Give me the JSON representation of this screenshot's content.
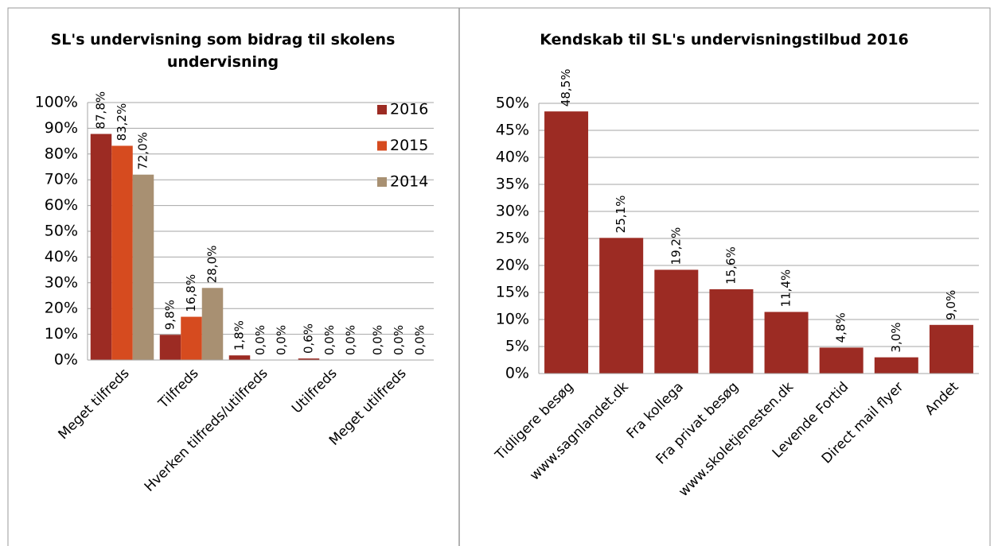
{
  "chart_data": [
    {
      "type": "bar",
      "title": "SL's undervisning som bidrag til skolens undervisning",
      "categories": [
        "Meget tilfreds",
        "Tilfreds",
        "Hverken tilfreds/utilfreds",
        "Utilfreds",
        "Meget utilfreds"
      ],
      "series": [
        {
          "name": "2016",
          "color": "#9c2b23",
          "values": [
            87.8,
            9.8,
            1.8,
            0.6,
            0.0
          ],
          "value_labels": [
            "87,8%",
            "9,8%",
            "1,8%",
            "0,6%",
            "0,0%"
          ]
        },
        {
          "name": "2015",
          "color": "#d64b1f",
          "values": [
            83.2,
            16.8,
            0.0,
            0.0,
            0.0
          ],
          "value_labels": [
            "83,2%",
            "16,8%",
            "0,0%",
            "0,0%",
            "0,0%"
          ]
        },
        {
          "name": "2014",
          "color": "#a89072",
          "values": [
            72.0,
            28.0,
            0.0,
            0.0,
            0.0
          ],
          "value_labels": [
            "72,0%",
            "28,0%",
            "0,0%",
            "0,0%",
            "0,0%"
          ]
        }
      ],
      "ylim": [
        0,
        100
      ],
      "yticks": [
        {
          "value": 0,
          "label": "0%"
        },
        {
          "value": 10,
          "label": "10%"
        },
        {
          "value": 20,
          "label": "20%"
        },
        {
          "value": 30,
          "label": "30%"
        },
        {
          "value": 40,
          "label": "40%"
        },
        {
          "value": 50,
          "label": "50%"
        },
        {
          "value": 60,
          "label": "60%"
        },
        {
          "value": 70,
          "label": "70%"
        },
        {
          "value": 80,
          "label": "80%"
        },
        {
          "value": 90,
          "label": "90%"
        },
        {
          "value": 100,
          "label": "100%"
        }
      ],
      "grid": true,
      "legend": "right"
    },
    {
      "type": "bar",
      "title": "Kendskab til SL's undervisningstilbud 2016",
      "categories": [
        "Tidligere besøg",
        "www.sagnlandet.dk",
        "Fra kollega",
        "Fra privat besøg",
        "www.skoletjenesten.dk",
        "Levende Fortid",
        "Direct mail flyer",
        "Andet"
      ],
      "values": [
        48.5,
        25.1,
        19.2,
        15.6,
        11.4,
        4.8,
        3.0,
        9.0
      ],
      "value_labels": [
        "48,5%",
        "25,1%",
        "19,2%",
        "15,6%",
        "11,4%",
        "4,8%",
        "3,0%",
        "9,0%"
      ],
      "color": "#9c2b23",
      "ylim": [
        0,
        50
      ],
      "yticks": [
        {
          "value": 0,
          "label": "0%"
        },
        {
          "value": 5,
          "label": "5%"
        },
        {
          "value": 10,
          "label": "10%"
        },
        {
          "value": 15,
          "label": "15%"
        },
        {
          "value": 20,
          "label": "20%"
        },
        {
          "value": 25,
          "label": "25%"
        },
        {
          "value": 30,
          "label": "30%"
        },
        {
          "value": 35,
          "label": "35%"
        },
        {
          "value": 40,
          "label": "40%"
        },
        {
          "value": 45,
          "label": "45%"
        },
        {
          "value": 50,
          "label": "50%"
        }
      ],
      "grid": true
    }
  ]
}
